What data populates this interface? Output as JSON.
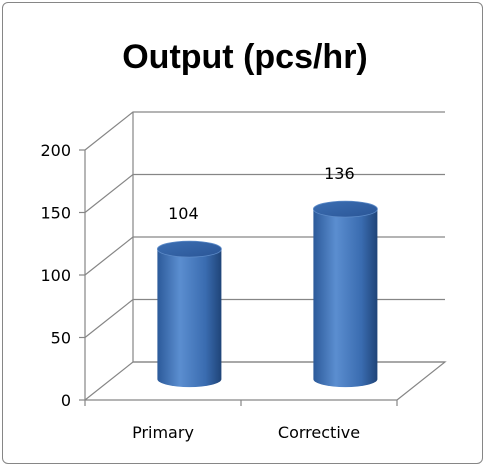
{
  "chart_data": {
    "type": "bar",
    "title": "Output (pcs/hr)",
    "categories": [
      "Primary",
      "Corrective"
    ],
    "values": [
      104,
      136
    ],
    "data_labels": [
      "104",
      "136"
    ],
    "ylim": [
      0,
      200
    ],
    "yticks": [
      0,
      50,
      100,
      150,
      200
    ],
    "xlabel": "",
    "ylabel": "",
    "grid": true,
    "legend": "none",
    "style": "3d-cylinder",
    "colors": {
      "bar": "#4a7ebb",
      "bar_light": "#7ba3d6",
      "bar_dark": "#27508f",
      "grid": "#868686"
    }
  }
}
